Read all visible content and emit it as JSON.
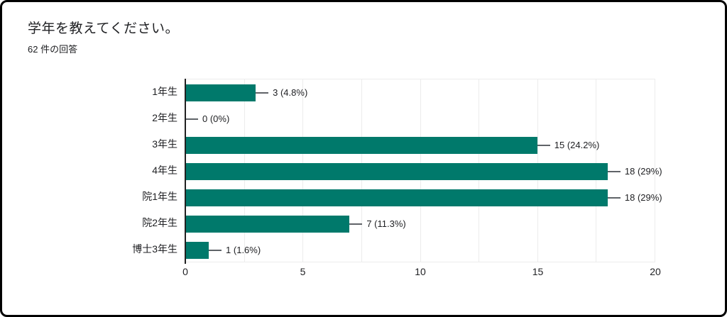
{
  "header": {
    "title": "学年を教えてください。",
    "subtitle": "62 件の回答"
  },
  "chart_data": {
    "type": "bar",
    "orientation": "horizontal",
    "title": "学年を教えてください。",
    "subtitle": "62 件の回答",
    "total_responses": 62,
    "categories": [
      "1年生",
      "2年生",
      "3年生",
      "4年生",
      "院1年生",
      "院2年生",
      "博士3年生"
    ],
    "values": [
      3,
      0,
      15,
      18,
      18,
      7,
      1
    ],
    "value_labels": [
      "3 (4.8%)",
      "0 (0%)",
      "15 (24.2%)",
      "18 (29%)",
      "18 (29%)",
      "7 (11.3%)",
      "1 (1.6%)"
    ],
    "xlim": [
      0,
      20
    ],
    "x_ticks": [
      0,
      5,
      10,
      15,
      20
    ],
    "gridline_interval": 2.5,
    "grid": true,
    "legend": false,
    "colors": {
      "bar": "#00796b",
      "axis": "#212121",
      "gridline": "#ececec",
      "leader_line": "#5f6368",
      "text": "#202124"
    }
  }
}
